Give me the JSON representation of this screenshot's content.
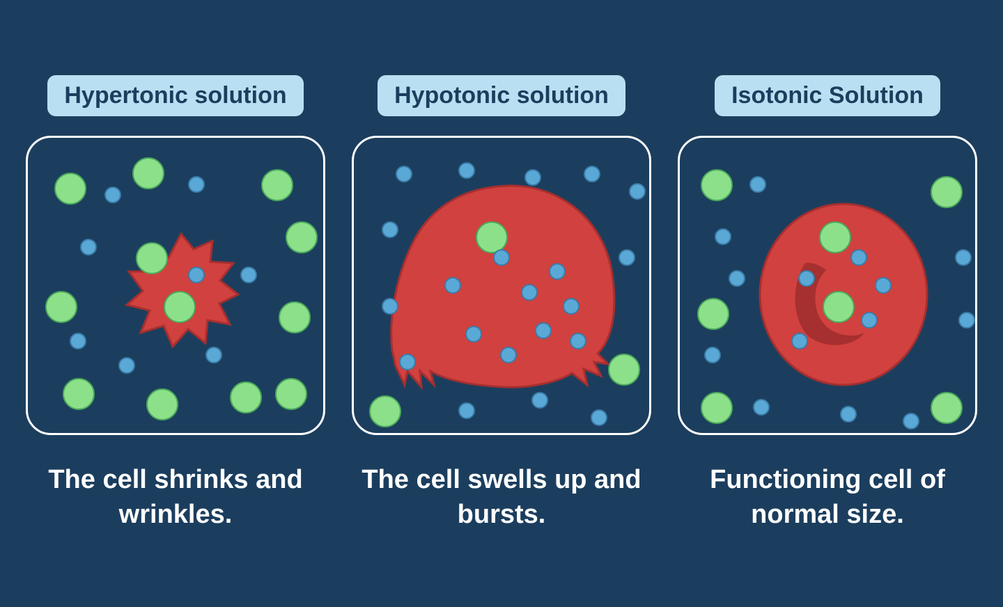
{
  "background_color": "#1c3e5e",
  "badge_bg": "#b9e0f2",
  "badge_text_color": "#1c3e5e",
  "box_border_color": "#ffffff",
  "caption_color": "#ffffff",
  "green_fill": "#8de08a",
  "green_stroke": "#4aa95b",
  "blue_fill": "#5aa8d6",
  "blue_stroke": "#3a7ba8",
  "cell_fill": "#d0413f",
  "cell_dark": "#a62f2f",
  "panels": [
    {
      "id": "hypertonic",
      "title": "Hypertonic solution",
      "caption": "The cell shrinks and wrinkles.",
      "cell": "shrink",
      "green_dots": [
        [
          38,
          50
        ],
        [
          150,
          28
        ],
        [
          335,
          45
        ],
        [
          370,
          120
        ],
        [
          25,
          220
        ],
        [
          360,
          235
        ],
        [
          50,
          345
        ],
        [
          170,
          360
        ],
        [
          290,
          350
        ],
        [
          355,
          345
        ]
      ],
      "blue_dots": [
        [
          110,
          70
        ],
        [
          230,
          55
        ],
        [
          75,
          145
        ],
        [
          305,
          185
        ],
        [
          255,
          300
        ],
        [
          130,
          315
        ],
        [
          60,
          280
        ]
      ],
      "inner_green": [
        [
          155,
          150
        ],
        [
          195,
          220
        ]
      ],
      "inner_blue": [
        [
          230,
          185
        ]
      ]
    },
    {
      "id": "hypotonic",
      "title": "Hypotonic solution",
      "caption": "The cell swells up and bursts.",
      "cell": "swell",
      "green_dots": [
        [
          175,
          120
        ],
        [
          365,
          310
        ],
        [
          22,
          370
        ]
      ],
      "blue_dots": [
        [
          60,
          40
        ],
        [
          150,
          35
        ],
        [
          245,
          45
        ],
        [
          330,
          40
        ],
        [
          395,
          65
        ],
        [
          40,
          120
        ],
        [
          380,
          160
        ],
        [
          40,
          230
        ],
        [
          65,
          310
        ],
        [
          150,
          380
        ],
        [
          255,
          365
        ],
        [
          340,
          390
        ]
      ],
      "inner_green": [],
      "inner_blue": [
        [
          130,
          200
        ],
        [
          200,
          160
        ],
        [
          240,
          210
        ],
        [
          280,
          180
        ],
        [
          300,
          230
        ],
        [
          260,
          265
        ],
        [
          310,
          280
        ],
        [
          210,
          300
        ],
        [
          160,
          270
        ]
      ]
    },
    {
      "id": "isotonic",
      "title": "Isotonic Solution",
      "caption": "Functioning cell of normal size.",
      "cell": "normal",
      "green_dots": [
        [
          30,
          45
        ],
        [
          360,
          55
        ],
        [
          25,
          230
        ],
        [
          30,
          365
        ],
        [
          360,
          365
        ]
      ],
      "blue_dots": [
        [
          100,
          55
        ],
        [
          50,
          130
        ],
        [
          70,
          190
        ],
        [
          35,
          300
        ],
        [
          105,
          375
        ],
        [
          230,
          385
        ],
        [
          320,
          395
        ],
        [
          395,
          160
        ],
        [
          400,
          250
        ]
      ],
      "inner_green": [
        [
          200,
          120
        ],
        [
          205,
          220
        ]
      ],
      "inner_blue": [
        [
          245,
          160
        ],
        [
          170,
          190
        ],
        [
          280,
          200
        ],
        [
          260,
          250
        ],
        [
          160,
          280
        ]
      ]
    }
  ]
}
